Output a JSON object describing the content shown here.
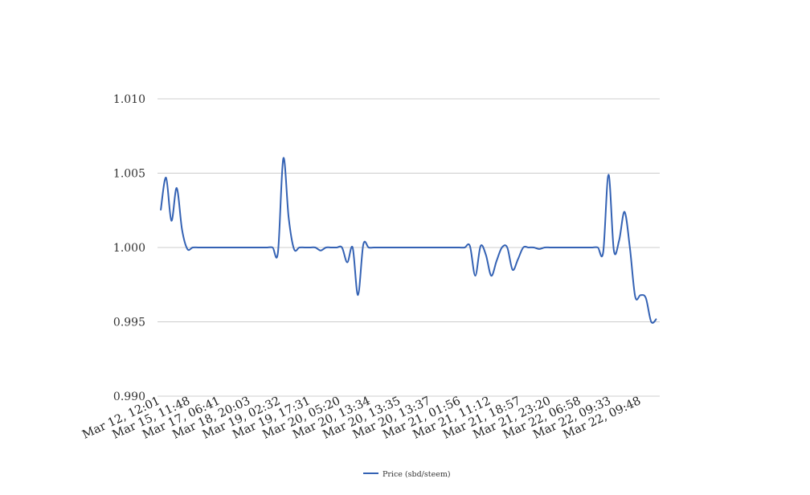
{
  "chart_data": {
    "type": "line",
    "title": "",
    "xlabel": "",
    "ylabel": "",
    "ylim": [
      0.99,
      1.01
    ],
    "y_ticks": [
      "1.010",
      "1.005",
      "1.000",
      "0.995",
      "0.990"
    ],
    "grid": true,
    "legend_position": "bottom",
    "x_tick_labels": [
      "Mar 12, 12:01",
      "Mar 15, 11:48",
      "Mar 17, 06:41",
      "Mar 18, 20:03",
      "Mar 19, 02:32",
      "Mar 19, 17:31",
      "Mar 20, 05:20",
      "Mar 20, 13:34",
      "Mar 20, 13:35",
      "Mar 20, 13:37",
      "Mar 21, 01:56",
      "Mar 21, 11:12",
      "Mar 21, 18:57",
      "Mar 21, 23:20",
      "Mar 22, 06:58",
      "Mar 22, 09:33",
      "Mar 22, 09:48"
    ],
    "series": [
      {
        "name": "Price (sbd/steem)",
        "color": "#3462b4",
        "values": [
          1.0025,
          1.0047,
          1.0018,
          1.004,
          1.0012,
          0.9999,
          1.0,
          1.0,
          1.0,
          1.0,
          1.0,
          1.0,
          1.0,
          1.0,
          1.0,
          1.0,
          1.0,
          1.0,
          1.0,
          1.0,
          1.0,
          1.0,
          0.9997,
          1.006,
          1.002,
          0.9999,
          1.0,
          1.0,
          1.0,
          1.0,
          0.9998,
          1.0,
          1.0,
          1.0,
          1.0,
          0.999,
          1.0,
          0.9968,
          1.0002,
          1.0,
          1.0,
          1.0,
          1.0,
          1.0,
          1.0,
          1.0,
          1.0,
          1.0,
          1.0,
          1.0,
          1.0,
          1.0,
          1.0,
          1.0,
          1.0,
          1.0,
          1.0,
          1.0,
          1.0001,
          0.9981,
          1.0001,
          0.9995,
          0.9981,
          0.9991,
          1.0,
          1.0,
          0.9985,
          0.9992,
          1.0,
          1.0,
          1.0,
          0.9999,
          1.0,
          1.0,
          1.0,
          1.0,
          1.0,
          1.0,
          1.0,
          1.0,
          1.0,
          1.0,
          1.0,
          0.9997,
          1.0049,
          0.9998,
          1.0005,
          1.0024,
          1.0,
          0.9967,
          0.9968,
          0.9966,
          0.995,
          0.9952
        ]
      }
    ]
  }
}
